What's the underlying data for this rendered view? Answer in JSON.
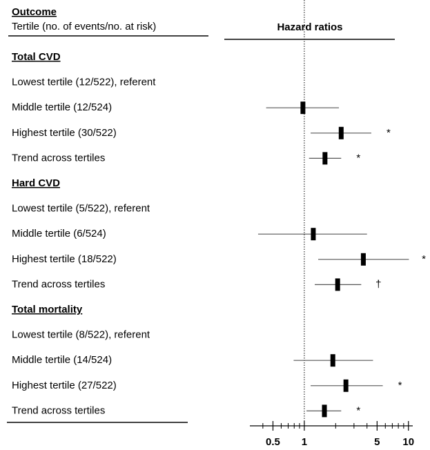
{
  "chart_data": {
    "type": "forest",
    "column_headers": {
      "outcome": "Outcome",
      "subgroup": "Tertile (no. of events/no. at risk)",
      "estimate": "Hazard ratios"
    },
    "log_scale": true,
    "xlim": [
      0.3,
      11
    ],
    "xticks": [
      0.5,
      1,
      5,
      10
    ],
    "minor_xticks": [
      0.4,
      0.6,
      0.7,
      0.8,
      0.9,
      2,
      3,
      4,
      6,
      7,
      8,
      9
    ],
    "reference_line": 1,
    "color": "#000000",
    "ci_color": "#555555",
    "groups": [
      {
        "name": "Total CVD",
        "rows": [
          {
            "label": "Lowest tertile (12/522), referent",
            "estimate": null,
            "lower": null,
            "upper": null
          },
          {
            "label": "Middle tertile (12/524)",
            "estimate": 0.97,
            "lower": 0.43,
            "upper": 2.15
          },
          {
            "label": "Highest tertile (30/522)",
            "estimate": 2.26,
            "lower": 1.15,
            "upper": 4.4,
            "annotation": "*"
          },
          {
            "label": "Trend across tertiles",
            "estimate": 1.58,
            "lower": 1.11,
            "upper": 2.26,
            "annotation": "*"
          }
        ]
      },
      {
        "name": "Hard CVD",
        "rows": [
          {
            "label": "Lowest tertile (5/522), referent",
            "estimate": null,
            "lower": null,
            "upper": null
          },
          {
            "label": "Middle tertile (6/524)",
            "estimate": 1.22,
            "lower": 0.36,
            "upper": 4.0
          },
          {
            "label": "Highest tertile (18/522)",
            "estimate": 3.69,
            "lower": 1.36,
            "upper": 10.1,
            "annotation": "*"
          },
          {
            "label": "Trend across tertiles",
            "estimate": 2.09,
            "lower": 1.26,
            "upper": 3.52,
            "annotation": "†"
          }
        ]
      },
      {
        "name": "Total mortality",
        "rows": [
          {
            "label": "Lowest tertile (8/522), referent",
            "estimate": null,
            "lower": null,
            "upper": null
          },
          {
            "label": "Middle tertile (14/524)",
            "estimate": 1.88,
            "lower": 0.79,
            "upper": 4.57
          },
          {
            "label": "Highest tertile (27/522)",
            "estimate": 2.51,
            "lower": 1.15,
            "upper": 5.67,
            "annotation": "*"
          },
          {
            "label": "Trend across tertiles",
            "estimate": 1.56,
            "lower": 1.05,
            "upper": 2.26,
            "annotation": "*"
          }
        ]
      }
    ]
  }
}
